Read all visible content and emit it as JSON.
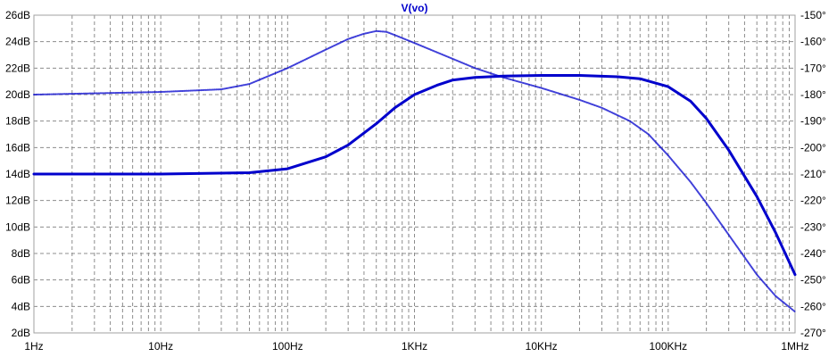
{
  "chart_data": {
    "type": "line",
    "title": "V(vo)",
    "x_scale": "log",
    "xlim": [
      1,
      1000000
    ],
    "x_ticks": [
      "1Hz",
      "10Hz",
      "100Hz",
      "1KHz",
      "10KHz",
      "100KHz",
      "1MHz"
    ],
    "ylim_left": [
      2,
      26
    ],
    "y_ticks_left": [
      "2dB",
      "4dB",
      "6dB",
      "8dB",
      "10dB",
      "12dB",
      "14dB",
      "16dB",
      "18dB",
      "20dB",
      "22dB",
      "24dB",
      "26dB"
    ],
    "ylim_right": [
      -270,
      -150
    ],
    "y_ticks_right": [
      "-270°",
      "-260°",
      "-250°",
      "-240°",
      "-230°",
      "-220°",
      "-210°",
      "-200°",
      "-190°",
      "-180°",
      "-170°",
      "-160°",
      "-150°"
    ],
    "grid": true,
    "colors": {
      "line": "#0000cc",
      "grid": "#8c8c8c",
      "axis": "#a0a0a0",
      "title": "#0000cc"
    },
    "series": [
      {
        "kind": "magnitude",
        "axis": "left",
        "style": "solid",
        "x": [
          1,
          10,
          50,
          100,
          200,
          300,
          500,
          700,
          1000,
          1500,
          2000,
          3000,
          5000,
          10000,
          20000,
          40000,
          60000,
          100000,
          150000,
          200000,
          300000,
          500000,
          700000,
          1000000
        ],
        "y": [
          14,
          14,
          14.1,
          14.4,
          15.3,
          16.2,
          17.8,
          19.0,
          20.0,
          20.7,
          21.1,
          21.3,
          21.4,
          21.45,
          21.45,
          21.35,
          21.2,
          20.6,
          19.5,
          18.2,
          15.8,
          12.3,
          9.6,
          6.4
        ]
      },
      {
        "kind": "phase",
        "axis": "right",
        "style": "dotted",
        "x": [
          1,
          10,
          30,
          50,
          100,
          200,
          300,
          400,
          500,
          600,
          700,
          1000,
          2000,
          3000,
          5000,
          10000,
          20000,
          30000,
          50000,
          70000,
          100000,
          150000,
          200000,
          300000,
          500000,
          700000,
          1000000
        ],
        "y": [
          -180,
          -179,
          -178,
          -176,
          -170,
          -163,
          -159,
          -157,
          -156,
          -156.3,
          -157.5,
          -160.5,
          -166.5,
          -170,
          -173.5,
          -177.5,
          -182,
          -185,
          -190,
          -195,
          -203,
          -213,
          -221,
          -233,
          -248,
          -256,
          -262
        ]
      }
    ]
  }
}
